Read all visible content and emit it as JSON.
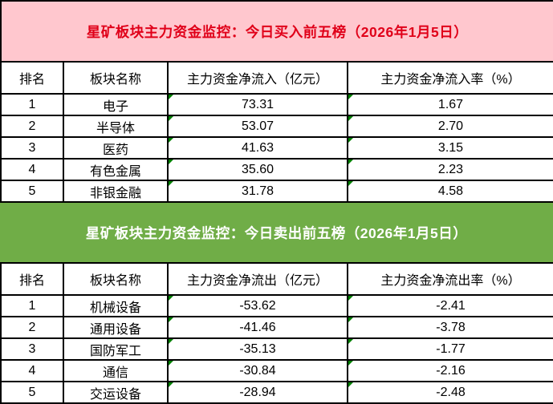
{
  "colors": {
    "buy-header-bg": "#FFC7CE",
    "buy-header-text": "#E00019",
    "sell-header-bg": "#70AD47",
    "sell-header-text": "#FFFFFF",
    "table-border": "#000000",
    "flag": "#008000",
    "cell-bg": "#FFFFFF",
    "cell-text": "#000000"
  },
  "chart_data": [
    {
      "type": "table",
      "title": "星矿板块主力资金监控：今日买入前五榜（2026年1月5日）",
      "columns": [
        "排名",
        "板块名称",
        "主力资金净流入（亿元）",
        "主力资金净流入率（%）"
      ],
      "rows": [
        [
          "1",
          "电子",
          "73.31",
          "1.67"
        ],
        [
          "2",
          "半导体",
          "53.07",
          "2.70"
        ],
        [
          "3",
          "医药",
          "41.63",
          "3.15"
        ],
        [
          "4",
          "有色金属",
          "35.60",
          "2.23"
        ],
        [
          "5",
          "非银金融",
          "31.78",
          "4.58"
        ]
      ]
    },
    {
      "type": "table",
      "title": "星矿板块主力资金监控：今日卖出前五榜（2026年1月5日）",
      "columns": [
        "排名",
        "板块名称",
        "主力资金净流出（亿元）",
        "主力资金净流出率（%）"
      ],
      "rows": [
        [
          "1",
          "机械设备",
          "-53.62",
          "-2.41"
        ],
        [
          "2",
          "通用设备",
          "-41.46",
          "-3.78"
        ],
        [
          "3",
          "国防军工",
          "-35.13",
          "-1.77"
        ],
        [
          "4",
          "通信",
          "-30.84",
          "-2.16"
        ],
        [
          "5",
          "交运设备",
          "-28.94",
          "-2.48"
        ]
      ]
    }
  ]
}
